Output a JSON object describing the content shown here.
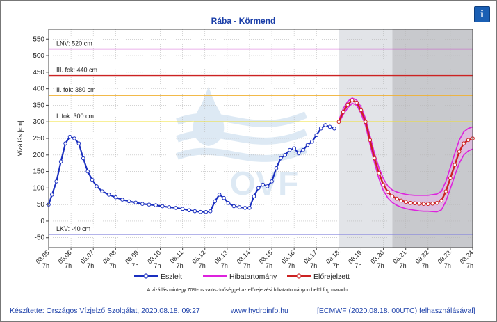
{
  "chart_data": {
    "type": "line",
    "title": "Rába - Körmend",
    "ylabel": "Vízállás [cm]",
    "xlabel": "",
    "ylim": [
      -80,
      580
    ],
    "yticks": [
      -50,
      0,
      50,
      100,
      150,
      200,
      250,
      300,
      350,
      400,
      450,
      500,
      550
    ],
    "x_tick_dates": [
      "08.05.",
      "08.06.",
      "08.07.",
      "08.08.",
      "08.09.",
      "08.10.",
      "08.11.",
      "08.12.",
      "08.13.",
      "08.14.",
      "08.15.",
      "08.16.",
      "08.17.",
      "08.18.",
      "08.19.",
      "08.20.",
      "08.21.",
      "08.22.",
      "08.23.",
      "08.24."
    ],
    "x_tick_hour": "7h",
    "x_unit": "days from 2020-08-05 07:00",
    "shaded_regions": [
      {
        "from": 13.0,
        "to": 15.4,
        "color": "#e2e4e8"
      },
      {
        "from": 15.4,
        "to": 19.0,
        "color": "#c8c9cd"
      }
    ],
    "thresholds": [
      {
        "label": "LNV: 520 cm",
        "value": 520,
        "color": "#cc33cc"
      },
      {
        "label": "III. fok: 440 cm",
        "value": 440,
        "color": "#cc2222"
      },
      {
        "label": "II. fok: 380 cm",
        "value": 380,
        "color": "#f0b030"
      },
      {
        "label": "I. fok: 300 cm",
        "value": 300,
        "color": "#f0e030"
      },
      {
        "label": "LKV: -40 cm",
        "value": -40,
        "color": "#8888dd"
      }
    ],
    "series": [
      {
        "name": "Észlelt",
        "color": "#1a2fbf",
        "points": [
          [
            0.0,
            50
          ],
          [
            0.15,
            80
          ],
          [
            0.35,
            120
          ],
          [
            0.55,
            180
          ],
          [
            0.75,
            235
          ],
          [
            0.95,
            255
          ],
          [
            1.15,
            250
          ],
          [
            1.35,
            235
          ],
          [
            1.55,
            190
          ],
          [
            1.75,
            150
          ],
          [
            1.95,
            125
          ],
          [
            2.15,
            105
          ],
          [
            2.4,
            90
          ],
          [
            2.7,
            80
          ],
          [
            3.0,
            72
          ],
          [
            3.3,
            65
          ],
          [
            3.6,
            60
          ],
          [
            3.9,
            56
          ],
          [
            4.2,
            52
          ],
          [
            4.5,
            50
          ],
          [
            4.8,
            48
          ],
          [
            5.1,
            45
          ],
          [
            5.4,
            42
          ],
          [
            5.7,
            40
          ],
          [
            6.0,
            37
          ],
          [
            6.3,
            33
          ],
          [
            6.55,
            30
          ],
          [
            6.8,
            28
          ],
          [
            7.05,
            28
          ],
          [
            7.25,
            30
          ],
          [
            7.45,
            60
          ],
          [
            7.65,
            80
          ],
          [
            7.85,
            70
          ],
          [
            8.05,
            55
          ],
          [
            8.3,
            45
          ],
          [
            8.55,
            42
          ],
          [
            8.8,
            40
          ],
          [
            9.0,
            40
          ],
          [
            9.2,
            75
          ],
          [
            9.4,
            100
          ],
          [
            9.6,
            110
          ],
          [
            9.8,
            105
          ],
          [
            10.0,
            120
          ],
          [
            10.2,
            160
          ],
          [
            10.4,
            190
          ],
          [
            10.6,
            200
          ],
          [
            10.8,
            215
          ],
          [
            11.0,
            220
          ],
          [
            11.2,
            205
          ],
          [
            11.4,
            215
          ],
          [
            11.6,
            230
          ],
          [
            11.8,
            240
          ],
          [
            12.0,
            260
          ],
          [
            12.2,
            280
          ],
          [
            12.4,
            290
          ],
          [
            12.6,
            285
          ],
          [
            12.8,
            280
          ]
        ]
      },
      {
        "name": "Előrejelzett",
        "color": "#cc2222",
        "points": [
          [
            13.0,
            300
          ],
          [
            13.2,
            330
          ],
          [
            13.4,
            352
          ],
          [
            13.6,
            365
          ],
          [
            13.8,
            358
          ],
          [
            14.0,
            335
          ],
          [
            14.2,
            300
          ],
          [
            14.4,
            245
          ],
          [
            14.6,
            190
          ],
          [
            14.8,
            145
          ],
          [
            15.0,
            110
          ],
          [
            15.2,
            88
          ],
          [
            15.4,
            75
          ],
          [
            15.6,
            68
          ],
          [
            15.8,
            62
          ],
          [
            16.0,
            58
          ],
          [
            16.2,
            55
          ],
          [
            16.4,
            54
          ],
          [
            16.6,
            53
          ],
          [
            16.8,
            52
          ],
          [
            17.0,
            52
          ],
          [
            17.2,
            53
          ],
          [
            17.4,
            55
          ],
          [
            17.6,
            62
          ],
          [
            17.8,
            90
          ],
          [
            18.0,
            130
          ],
          [
            18.2,
            170
          ],
          [
            18.4,
            210
          ],
          [
            18.6,
            235
          ],
          [
            18.8,
            245
          ],
          [
            19.0,
            250
          ]
        ]
      },
      {
        "name": "Hibatartomány",
        "color": "#dd22dd",
        "upper": [
          [
            13.0,
            305
          ],
          [
            13.2,
            340
          ],
          [
            13.4,
            362
          ],
          [
            13.6,
            372
          ],
          [
            13.8,
            366
          ],
          [
            14.0,
            345
          ],
          [
            14.2,
            310
          ],
          [
            14.4,
            258
          ],
          [
            14.6,
            205
          ],
          [
            14.8,
            162
          ],
          [
            15.0,
            128
          ],
          [
            15.2,
            106
          ],
          [
            15.4,
            94
          ],
          [
            15.6,
            88
          ],
          [
            15.8,
            84
          ],
          [
            16.0,
            81
          ],
          [
            16.2,
            79
          ],
          [
            16.4,
            78
          ],
          [
            16.6,
            78
          ],
          [
            16.8,
            78
          ],
          [
            17.0,
            78
          ],
          [
            17.2,
            80
          ],
          [
            17.4,
            82
          ],
          [
            17.6,
            90
          ],
          [
            17.8,
            120
          ],
          [
            18.0,
            162
          ],
          [
            18.2,
            205
          ],
          [
            18.4,
            245
          ],
          [
            18.6,
            270
          ],
          [
            18.8,
            280
          ],
          [
            19.0,
            285
          ]
        ],
        "lower": [
          [
            13.0,
            296
          ],
          [
            13.2,
            322
          ],
          [
            13.4,
            342
          ],
          [
            13.6,
            356
          ],
          [
            13.8,
            350
          ],
          [
            14.0,
            325
          ],
          [
            14.2,
            288
          ],
          [
            14.4,
            232
          ],
          [
            14.6,
            176
          ],
          [
            14.8,
            128
          ],
          [
            15.0,
            92
          ],
          [
            15.2,
            70
          ],
          [
            15.4,
            56
          ],
          [
            15.6,
            48
          ],
          [
            15.8,
            42
          ],
          [
            16.0,
            38
          ],
          [
            16.2,
            35
          ],
          [
            16.4,
            33
          ],
          [
            16.6,
            31
          ],
          [
            16.8,
            30
          ],
          [
            17.0,
            30
          ],
          [
            17.2,
            29
          ],
          [
            17.4,
            28
          ],
          [
            17.6,
            34
          ],
          [
            17.8,
            60
          ],
          [
            18.0,
            98
          ],
          [
            18.2,
            138
          ],
          [
            18.4,
            175
          ],
          [
            18.6,
            200
          ],
          [
            18.8,
            212
          ],
          [
            19.0,
            218
          ]
        ]
      }
    ]
  },
  "legend": {
    "observed": "Észlelt",
    "range": "Hibatartomány",
    "forecast": "Előrejelzett"
  },
  "note": "A vízállás mintegy 70%-os valószínűséggel az előrejelzési hibatartományon belül fog maradni.",
  "footer": {
    "author": "Készítette: Országos Vízjelző Szolgálat, 2020.08.18. 09:27",
    "website": "www.hydroinfo.hu",
    "model": "[ECMWF (2020.08.18. 00UTC) felhasználásával]"
  },
  "info_icon": "i",
  "watermark": "OVF"
}
